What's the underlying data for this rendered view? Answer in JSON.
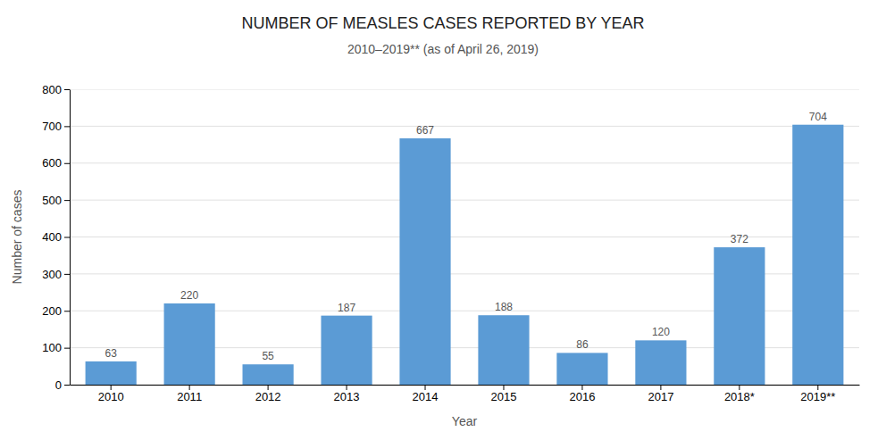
{
  "chart_data": {
    "type": "bar",
    "title": "NUMBER OF MEASLES CASES REPORTED BY YEAR",
    "subtitle": "2010–2019** (as of April 26, 2019)",
    "xlabel": "Year",
    "ylabel": "Number of cases",
    "categories": [
      "2010",
      "2011",
      "2012",
      "2013",
      "2014",
      "2015",
      "2016",
      "2017",
      "2018*",
      "2019**"
    ],
    "values": [
      63,
      220,
      55,
      187,
      667,
      188,
      86,
      120,
      372,
      704
    ],
    "color": "#5b9bd5",
    "ylim": [
      0,
      800
    ],
    "yticks": [
      0,
      100,
      200,
      300,
      400,
      500,
      600,
      700,
      800
    ],
    "grid": true,
    "data_labels": true
  }
}
